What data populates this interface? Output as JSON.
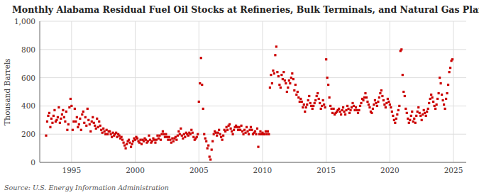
{
  "chart_data": {
    "type": "scatter",
    "title": "Monthly Alabama Residual Fuel Oil Stocks at Refineries, Bulk Terminals, and Natural Gas Plants",
    "ylabel": "Thousand Barrels",
    "source": "Source: U.S. Energy Information Administration",
    "color": "#cc0000",
    "marker": "square",
    "grid": true,
    "xlim": [
      1992.5,
      2026.0
    ],
    "ylim": [
      0,
      1000
    ],
    "xticks": [
      1995,
      2000,
      2005,
      2010,
      2015,
      2020,
      2025
    ],
    "yticks": [
      0,
      200,
      400,
      600,
      800,
      {
        "value": 1000,
        "label": "1,000"
      }
    ],
    "x": [
      1993.0,
      1993.083,
      1993.167,
      1993.25,
      1993.333,
      1993.417,
      1993.5,
      1993.583,
      1993.667,
      1993.75,
      1993.833,
      1993.917,
      1994.0,
      1994.083,
      1994.167,
      1994.25,
      1994.333,
      1994.417,
      1994.5,
      1994.583,
      1994.667,
      1994.75,
      1994.833,
      1994.917,
      1995.0,
      1995.083,
      1995.167,
      1995.25,
      1995.333,
      1995.417,
      1995.5,
      1995.583,
      1995.667,
      1995.75,
      1995.833,
      1995.917,
      1996.0,
      1996.083,
      1996.167,
      1996.25,
      1996.333,
      1996.417,
      1996.5,
      1996.583,
      1996.667,
      1996.75,
      1996.833,
      1996.917,
      1997.0,
      1997.083,
      1997.167,
      1997.25,
      1997.333,
      1997.417,
      1997.5,
      1997.583,
      1997.667,
      1997.75,
      1997.833,
      1997.917,
      1998.0,
      1998.083,
      1998.167,
      1998.25,
      1998.333,
      1998.417,
      1998.5,
      1998.583,
      1998.667,
      1998.75,
      1998.833,
      1998.917,
      1999.0,
      1999.083,
      1999.167,
      1999.25,
      1999.333,
      1999.417,
      1999.5,
      1999.583,
      1999.667,
      1999.75,
      1999.833,
      1999.917,
      2000.0,
      2000.083,
      2000.167,
      2000.25,
      2000.333,
      2000.417,
      2000.5,
      2000.583,
      2000.667,
      2000.75,
      2000.833,
      2000.917,
      2001.0,
      2001.083,
      2001.167,
      2001.25,
      2001.333,
      2001.417,
      2001.5,
      2001.583,
      2001.667,
      2001.75,
      2001.833,
      2001.917,
      2002.0,
      2002.083,
      2002.167,
      2002.25,
      2002.333,
      2002.417,
      2002.5,
      2002.583,
      2002.667,
      2002.75,
      2002.833,
      2002.917,
      2003.0,
      2003.083,
      2003.167,
      2003.25,
      2003.333,
      2003.417,
      2003.5,
      2003.583,
      2003.667,
      2003.75,
      2003.833,
      2003.917,
      2004.0,
      2004.083,
      2004.167,
      2004.25,
      2004.333,
      2004.417,
      2004.5,
      2004.583,
      2004.667,
      2004.75,
      2004.833,
      2004.917,
      2005.0,
      2005.083,
      2005.167,
      2005.25,
      2005.333,
      2005.417,
      2005.5,
      2005.583,
      2005.667,
      2005.75,
      2005.833,
      2005.917,
      2006.0,
      2006.083,
      2006.167,
      2006.25,
      2006.333,
      2006.417,
      2006.5,
      2006.583,
      2006.667,
      2006.75,
      2006.833,
      2006.917,
      2007.0,
      2007.083,
      2007.167,
      2007.25,
      2007.333,
      2007.417,
      2007.5,
      2007.583,
      2007.667,
      2007.75,
      2007.833,
      2007.917,
      2008.0,
      2008.083,
      2008.167,
      2008.25,
      2008.333,
      2008.417,
      2008.5,
      2008.583,
      2008.667,
      2008.75,
      2008.833,
      2008.917,
      2009.0,
      2009.083,
      2009.167,
      2009.25,
      2009.333,
      2009.417,
      2009.5,
      2009.583,
      2009.667,
      2009.75,
      2009.833,
      2009.917,
      2010.0,
      2010.083,
      2010.167,
      2010.25,
      2010.333,
      2010.417,
      2010.5,
      2010.583,
      2010.667,
      2010.75,
      2010.833,
      2010.917,
      2011.0,
      2011.083,
      2011.167,
      2011.25,
      2011.333,
      2011.417,
      2011.5,
      2011.583,
      2011.667,
      2011.75,
      2011.833,
      2011.917,
      2012.0,
      2012.083,
      2012.167,
      2012.25,
      2012.333,
      2012.417,
      2012.5,
      2012.583,
      2012.667,
      2012.75,
      2012.833,
      2012.917,
      2013.0,
      2013.083,
      2013.167,
      2013.25,
      2013.333,
      2013.417,
      2013.5,
      2013.583,
      2013.667,
      2013.75,
      2013.833,
      2013.917,
      2014.0,
      2014.083,
      2014.167,
      2014.25,
      2014.333,
      2014.417,
      2014.5,
      2014.583,
      2014.667,
      2014.75,
      2014.833,
      2014.917,
      2015.0,
      2015.083,
      2015.167,
      2015.25,
      2015.333,
      2015.417,
      2015.5,
      2015.583,
      2015.667,
      2015.75,
      2015.833,
      2015.917,
      2016.0,
      2016.083,
      2016.167,
      2016.25,
      2016.333,
      2016.417,
      2016.5,
      2016.583,
      2016.667,
      2016.75,
      2016.833,
      2016.917,
      2017.0,
      2017.083,
      2017.167,
      2017.25,
      2017.333,
      2017.417,
      2017.5,
      2017.583,
      2017.667,
      2017.75,
      2017.833,
      2017.917,
      2018.0,
      2018.083,
      2018.167,
      2018.25,
      2018.333,
      2018.417,
      2018.5,
      2018.583,
      2018.667,
      2018.75,
      2018.833,
      2018.917,
      2019.0,
      2019.083,
      2019.167,
      2019.25,
      2019.333,
      2019.417,
      2019.5,
      2019.583,
      2019.667,
      2019.75,
      2019.833,
      2019.917,
      2020.0,
      2020.083,
      2020.167,
      2020.25,
      2020.333,
      2020.417,
      2020.5,
      2020.583,
      2020.667,
      2020.75,
      2020.833,
      2020.917,
      2021.0,
      2021.083,
      2021.167,
      2021.25,
      2021.333,
      2021.417,
      2021.5,
      2021.583,
      2021.667,
      2021.75,
      2021.833,
      2021.917,
      2022.0,
      2022.083,
      2022.167,
      2022.25,
      2022.333,
      2022.417,
      2022.5,
      2022.583,
      2022.667,
      2022.75,
      2022.833,
      2022.917,
      2023.0,
      2023.083,
      2023.167,
      2023.25,
      2023.333,
      2023.417,
      2023.5,
      2023.583,
      2023.667,
      2023.75,
      2023.833,
      2023.917,
      2024.0,
      2024.083,
      2024.167,
      2024.25,
      2024.333,
      2024.417,
      2024.5,
      2024.583,
      2024.667,
      2024.75,
      2024.833,
      2024.917
    ],
    "values": [
      190,
      290,
      330,
      350,
      250,
      310,
      280,
      330,
      370,
      290,
      300,
      320,
      390,
      280,
      310,
      340,
      370,
      320,
      290,
      360,
      230,
      270,
      390,
      450,
      400,
      230,
      290,
      380,
      290,
      320,
      250,
      270,
      310,
      230,
      340,
      360,
      280,
      320,
      260,
      380,
      300,
      270,
      220,
      290,
      320,
      280,
      260,
      240,
      310,
      250,
      290,
      260,
      230,
      210,
      240,
      220,
      200,
      230,
      200,
      220,
      220,
      200,
      180,
      210,
      190,
      200,
      210,
      180,
      200,
      190,
      170,
      180,
      160,
      140,
      120,
      100,
      130,
      150,
      160,
      140,
      110,
      130,
      150,
      170,
      160,
      180,
      170,
      150,
      140,
      160,
      130,
      160,
      150,
      170,
      160,
      140,
      150,
      190,
      160,
      140,
      150,
      170,
      160,
      140,
      160,
      190,
      170,
      190,
      160,
      200,
      220,
      200,
      180,
      200,
      180,
      160,
      180,
      160,
      140,
      170,
      150,
      170,
      180,
      160,
      190,
      220,
      200,
      240,
      190,
      170,
      200,
      180,
      210,
      200,
      190,
      210,
      200,
      230,
      210,
      180,
      160,
      170,
      180,
      200,
      430,
      560,
      740,
      550,
      380,
      200,
      170,
      150,
      100,
      120,
      40,
      20,
      90,
      150,
      200,
      220,
      210,
      190,
      210,
      230,
      200,
      180,
      160,
      190,
      230,
      220,
      250,
      230,
      260,
      270,
      240,
      220,
      200,
      230,
      250,
      260,
      250,
      230,
      250,
      230,
      260,
      220,
      200,
      230,
      210,
      250,
      220,
      200,
      230,
      250,
      230,
      200,
      210,
      220,
      200,
      240,
      110,
      200,
      220,
      200,
      210,
      200,
      200,
      220,
      200,
      220,
      200,
      530,
      620,
      560,
      650,
      630,
      760,
      820,
      640,
      610,
      550,
      530,
      620,
      590,
      640,
      580,
      560,
      500,
      530,
      580,
      560,
      600,
      630,
      590,
      510,
      550,
      480,
      500,
      460,
      430,
      450,
      430,
      390,
      410,
      360,
      390,
      410,
      440,
      470,
      420,
      400,
      380,
      400,
      420,
      440,
      470,
      490,
      450,
      420,
      380,
      400,
      440,
      410,
      390,
      730,
      600,
      550,
      460,
      400,
      380,
      350,
      380,
      340,
      350,
      360,
      370,
      380,
      360,
      340,
      370,
      390,
      360,
      340,
      370,
      400,
      380,
      350,
      370,
      390,
      420,
      400,
      370,
      390,
      370,
      350,
      370,
      400,
      420,
      450,
      440,
      460,
      490,
      460,
      430,
      410,
      390,
      360,
      350,
      380,
      410,
      440,
      420,
      400,
      430,
      460,
      490,
      510,
      470,
      440,
      410,
      390,
      420,
      450,
      430,
      410,
      390,
      360,
      330,
      300,
      280,
      310,
      340,
      370,
      400,
      790,
      800,
      620,
      500,
      470,
      380,
      350,
      310,
      280,
      300,
      330,
      360,
      290,
      310,
      280,
      330,
      360,
      390,
      350,
      330,
      300,
      340,
      370,
      350,
      330,
      360,
      380,
      420,
      450,
      480,
      460,
      430,
      400,
      380,
      410,
      450,
      490,
      600,
      560,
      480,
      440,
      410,
      380,
      450,
      490,
      550,
      640,
      670,
      720,
      730
    ]
  }
}
